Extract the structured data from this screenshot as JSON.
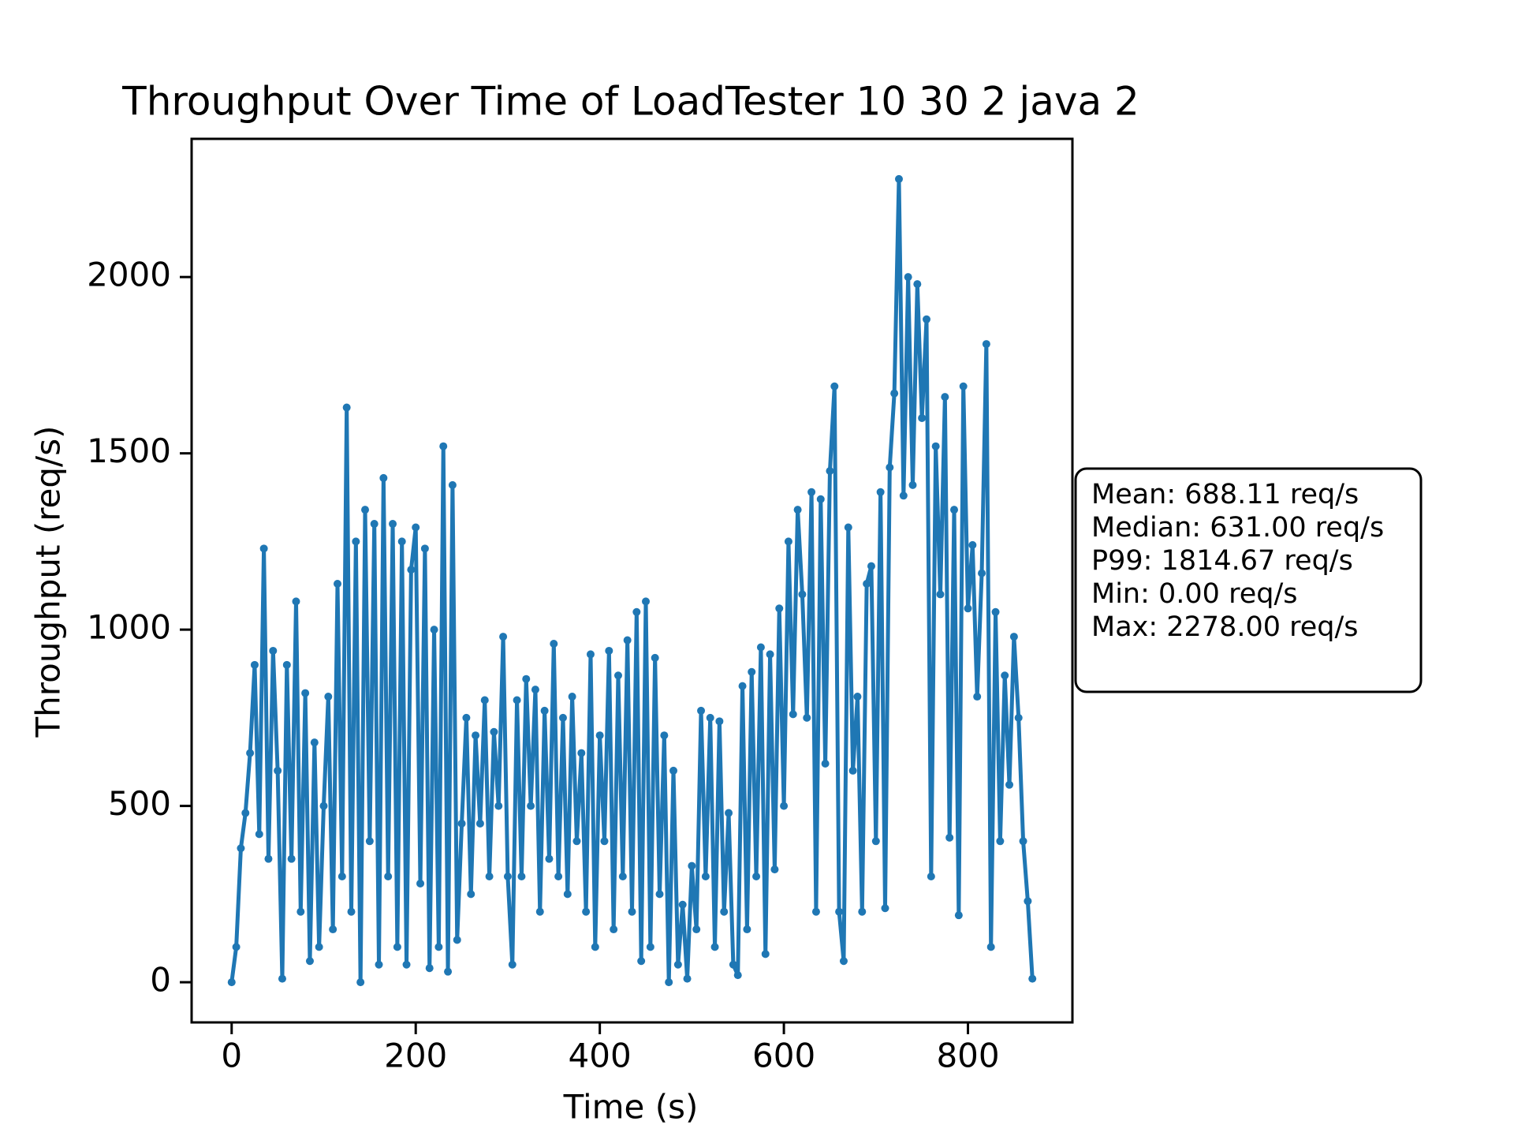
{
  "chart_data": {
    "type": "line",
    "title": "Throughput Over Time of LoadTester 10 30 2 java 2",
    "xlabel": "Time (s)",
    "ylabel": "Throughput (req/s)",
    "color": "#1f77b4",
    "x": [
      0,
      5,
      10,
      15,
      20,
      25,
      30,
      35,
      40,
      45,
      50,
      55,
      60,
      65,
      70,
      75,
      80,
      85,
      90,
      95,
      100,
      105,
      110,
      115,
      120,
      125,
      130,
      135,
      140,
      145,
      150,
      155,
      160,
      165,
      170,
      175,
      180,
      185,
      190,
      195,
      200,
      205,
      210,
      215,
      220,
      225,
      230,
      235,
      240,
      245,
      250,
      255,
      260,
      265,
      270,
      275,
      280,
      285,
      290,
      295,
      300,
      305,
      310,
      315,
      320,
      325,
      330,
      335,
      340,
      345,
      350,
      355,
      360,
      365,
      370,
      375,
      380,
      385,
      390,
      395,
      400,
      405,
      410,
      415,
      420,
      425,
      430,
      435,
      440,
      445,
      450,
      455,
      460,
      465,
      470,
      475,
      480,
      485,
      490,
      495,
      500,
      505,
      510,
      515,
      520,
      525,
      530,
      535,
      540,
      545,
      550,
      555,
      560,
      565,
      570,
      575,
      580,
      585,
      590,
      595,
      600,
      605,
      610,
      615,
      620,
      625,
      630,
      635,
      640,
      645,
      650,
      655,
      660,
      665,
      670,
      675,
      680,
      685,
      690,
      695,
      700,
      705,
      710,
      715,
      720,
      725,
      730,
      735,
      740,
      745,
      750,
      755,
      760,
      765,
      770,
      775,
      780,
      785,
      790,
      795,
      800,
      805,
      810,
      815,
      820,
      825,
      830,
      835,
      840,
      845,
      850,
      855,
      860,
      865,
      870
    ],
    "values": [
      0,
      100,
      380,
      480,
      650,
      900,
      420,
      1230,
      350,
      940,
      600,
      10,
      900,
      350,
      1080,
      200,
      820,
      60,
      680,
      100,
      500,
      810,
      150,
      1130,
      300,
      1630,
      200,
      1250,
      0,
      1340,
      400,
      1300,
      50,
      1430,
      300,
      1300,
      100,
      1250,
      50,
      1170,
      1290,
      280,
      1230,
      40,
      1000,
      100,
      1520,
      30,
      1410,
      120,
      450,
      750,
      250,
      700,
      450,
      800,
      300,
      710,
      500,
      980,
      300,
      50,
      800,
      300,
      860,
      500,
      830,
      200,
      770,
      350,
      960,
      300,
      750,
      250,
      810,
      400,
      650,
      200,
      930,
      100,
      700,
      400,
      940,
      150,
      870,
      300,
      970,
      200,
      1050,
      60,
      1080,
      100,
      920,
      250,
      700,
      0,
      600,
      50,
      220,
      10,
      330,
      150,
      770,
      300,
      750,
      100,
      740,
      200,
      480,
      50,
      20,
      840,
      150,
      880,
      300,
      950,
      80,
      930,
      320,
      1060,
      500,
      1250,
      760,
      1340,
      1100,
      750,
      1390,
      200,
      1370,
      620,
      1450,
      1690,
      200,
      60,
      1290,
      600,
      810,
      200,
      1130,
      1180,
      400,
      1390,
      210,
      1460,
      1670,
      2278,
      1380,
      2000,
      1410,
      1980,
      1600,
      1880,
      300,
      1520,
      1100,
      1660,
      410,
      1340,
      190,
      1690,
      1060,
      1240,
      810,
      1160,
      1810,
      100,
      1050,
      400,
      870,
      560,
      980,
      750,
      400,
      230,
      10
    ],
    "xlim": [
      -43.5,
      913.5
    ],
    "xticks": [
      0,
      200,
      400,
      600,
      800
    ],
    "ylim": [
      -113.9,
      2391.9
    ],
    "yticks": [
      0,
      500,
      1000,
      1500,
      2000
    ],
    "stats": [
      "Mean: 688.11 req/s",
      "Median: 631.00 req/s",
      "P99: 1814.67 req/s",
      "Min: 0.00 req/s",
      "Max: 2278.00 req/s"
    ]
  }
}
